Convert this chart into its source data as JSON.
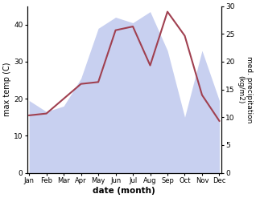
{
  "months": [
    "Jan",
    "Feb",
    "Mar",
    "Apr",
    "May",
    "Jun",
    "Jul",
    "Aug",
    "Sep",
    "Oct",
    "Nov",
    "Dec"
  ],
  "temperature": [
    15.5,
    16.0,
    20.0,
    24.0,
    24.5,
    38.5,
    39.5,
    29.0,
    43.5,
    37.0,
    21.0,
    14.0
  ],
  "precipitation": [
    13,
    11,
    12,
    17,
    26,
    28,
    27,
    29,
    22,
    10,
    22,
    13
  ],
  "temp_color": "#a04050",
  "precip_fill_color": "#c8d0f0",
  "background_color": "#ffffff",
  "fig_bg": "#ffffff",
  "xlabel": "date (month)",
  "ylabel_left": "max temp (C)",
  "ylabel_right": "med. precipitation\n(kg/m2)",
  "ylim_left": [
    0,
    45
  ],
  "ylim_right": [
    0,
    30
  ],
  "yticks_left": [
    0,
    10,
    20,
    30,
    40
  ],
  "yticks_right": [
    0,
    5,
    10,
    15,
    20,
    25,
    30
  ]
}
